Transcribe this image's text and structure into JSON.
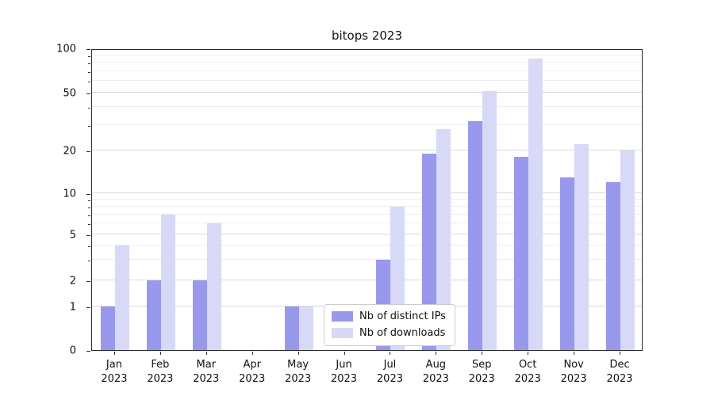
{
  "chart_data": {
    "type": "bar",
    "title": "bitops 2023",
    "scale": "symlog",
    "grid": "horizontal",
    "legend_position": "lower center inside plot",
    "categories": [
      "Jan",
      "Feb",
      "Mar",
      "Apr",
      "May",
      "Jun",
      "Jul",
      "Aug",
      "Sep",
      "Oct",
      "Nov",
      "Dec"
    ],
    "year": "2023",
    "yticks": [
      0,
      1,
      2,
      5,
      10,
      20,
      50,
      100
    ],
    "minor_yticks": [
      3,
      4,
      6,
      7,
      8,
      9,
      30,
      40,
      60,
      70,
      80,
      90
    ],
    "ylim": [
      0,
      100
    ],
    "series": [
      {
        "name": "Nb of distinct IPs",
        "color": "#9898ec",
        "values": [
          1,
          2,
          2,
          0,
          1,
          0,
          3,
          19,
          32,
          18,
          13,
          12
        ]
      },
      {
        "name": "Nb of downloads",
        "color": "#d8d8f7",
        "values": [
          4,
          7,
          6,
          0,
          1,
          0,
          8,
          28,
          51,
          85,
          22,
          20
        ]
      }
    ]
  }
}
